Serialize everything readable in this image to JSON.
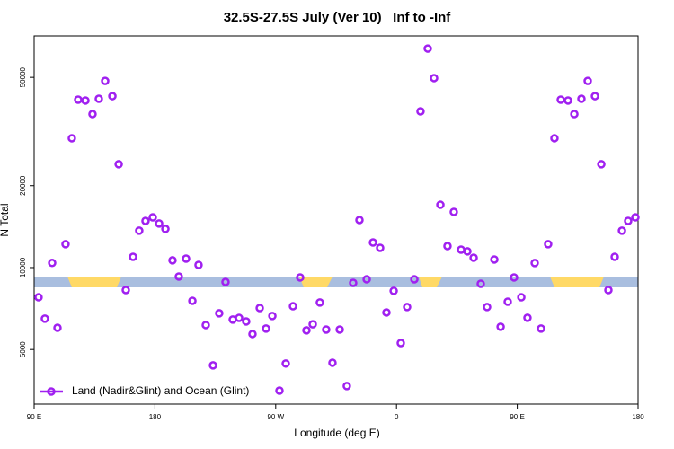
{
  "chart_data": {
    "type": "scatter",
    "title": "32.5S-27.5S July (Ver 10)   Inf to -Inf",
    "x_label": "Longitude (deg E)",
    "y_label": "N Total",
    "log_y": true,
    "xlim": [
      90,
      540
    ],
    "ylim": [
      3150,
      71000
    ],
    "xticks": [
      {
        "value": 90,
        "label": "90 E"
      },
      180,
      {
        "value": 270,
        "label": "90 W"
      },
      {
        "value": 360,
        "label": "0"
      },
      {
        "value": 450,
        "label": "90 E"
      },
      {
        "value": 540,
        "label": "180"
      }
    ],
    "yticks": [
      5000,
      10000,
      20000,
      50000
    ],
    "legend": "bottom-left",
    "x": [
      93.3,
      98,
      103.4,
      107.4,
      113.4,
      118.1,
      122.8,
      128.2,
      133.5,
      138.2,
      142.9,
      148.3,
      153,
      158.3,
      163.7,
      168.3,
      173,
      178.4,
      183.1,
      187.8,
      193.1,
      197.8,
      203.2,
      207.9,
      212.5,
      217.9,
      223.3,
      227.9,
      232.6,
      238,
      242.7,
      248,
      252.7,
      258.1,
      262.8,
      267.5,
      272.8,
      277.5,
      282.9,
      288.2,
      292.9,
      297.6,
      302.9,
      307.6,
      312.3,
      317.7,
      323,
      327.7,
      332.4,
      337.8,
      342.5,
      347.8,
      352.5,
      357.9,
      363.2,
      367.9,
      373.3,
      377.9,
      383.3,
      388,
      392.7,
      398,
      402.7,
      408.1,
      412.8,
      417.5,
      422.8,
      427.5,
      432.9,
      437.6,
      442.9,
      447.6,
      453,
      457.6,
      463,
      467.7,
      473,
      477.7,
      482.4,
      487.8,
      492.5,
      497.8,
      502.5,
      507.9,
      512.6,
      517.9,
      522.6,
      528,
      532.6,
      538
    ],
    "series": [
      {
        "name": "Land (Nadir&Glint) and Ocean (Glint)",
        "color": "#a020f0",
        "values": [
          7780,
          6490,
          10400,
          6010,
          12190,
          29870,
          41400,
          41100,
          36650,
          41700,
          48500,
          42650,
          23970,
          8270,
          10950,
          13660,
          14840,
          15300,
          14520,
          13870,
          10630,
          9270,
          10790,
          7550,
          10230,
          6150,
          4370,
          6790,
          8850,
          6440,
          6530,
          6340,
          5700,
          7100,
          5970,
          6640,
          3530,
          4440,
          7210,
          9200,
          5880,
          6190,
          7440,
          5920,
          4470,
          5920,
          3670,
          8790,
          14960,
          9060,
          12370,
          11820,
          6840,
          8210,
          5280,
          7160,
          9060,
          37500,
          63800,
          49700,
          17010,
          12000,
          16020,
          11640,
          11470,
          10870,
          8720,
          7160,
          10710,
          6060,
          7490,
          9200,
          7780,
          6540,
          10390,
          5970,
          12190,
          29870,
          41400,
          41100,
          36650,
          41700,
          48500,
          42650,
          23970,
          8270,
          10950,
          13660,
          14840,
          15300
        ]
      }
    ]
  }
}
